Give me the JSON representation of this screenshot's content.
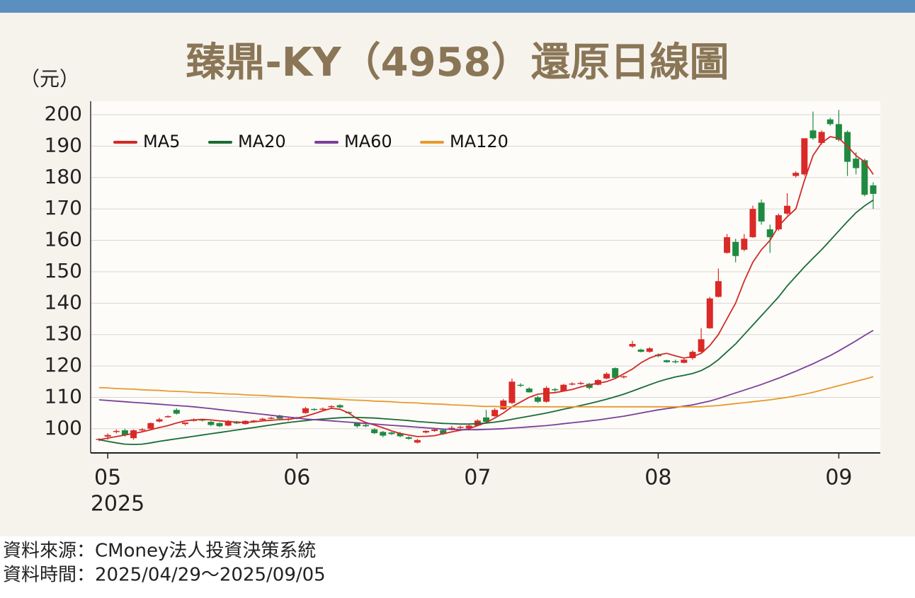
{
  "chart_data": {
    "type": "candlestick",
    "title": "臻鼎-KY（4958）還原日線圖",
    "y_axis_label": "（元）",
    "year_label": "2025",
    "categories": [
      null,
      "05",
      null,
      null,
      null,
      null,
      null,
      null,
      null,
      null,
      null,
      null,
      null,
      null,
      null,
      null,
      null,
      null,
      null,
      null,
      null,
      null,
      null,
      "06",
      null,
      null,
      null,
      null,
      null,
      null,
      null,
      null,
      null,
      null,
      null,
      null,
      null,
      null,
      null,
      null,
      null,
      null,
      null,
      null,
      "07",
      null,
      null,
      null,
      null,
      null,
      null,
      null,
      null,
      null,
      null,
      null,
      null,
      null,
      null,
      null,
      null,
      null,
      null,
      null,
      null,
      "08",
      null,
      null,
      null,
      null,
      null,
      null,
      null,
      null,
      null,
      null,
      null,
      null,
      null,
      null,
      null,
      null,
      null,
      null,
      null,
      null,
      "09",
      null,
      null,
      null,
      null
    ],
    "candle_fields": [
      "open",
      "high",
      "low",
      "close"
    ],
    "up_color": "#d92a27",
    "down_color": "#1f8a3f",
    "candles": [
      [
        96.5,
        97,
        96,
        96.8
      ],
      [
        97.5,
        98.5,
        96.5,
        98
      ],
      [
        99,
        99.8,
        98.5,
        99.3
      ],
      [
        99.5,
        100,
        97.5,
        98
      ],
      [
        97,
        99.8,
        96.5,
        99.5
      ],
      [
        99.5,
        100.2,
        99,
        99.8
      ],
      [
        100,
        102,
        99.5,
        101.8
      ],
      [
        102.3,
        103.5,
        102,
        103
      ],
      [
        103.8,
        104.3,
        103.5,
        104
      ],
      [
        106,
        106.5,
        104.5,
        104.8
      ],
      [
        101.5,
        102,
        101,
        102
      ],
      [
        102.5,
        103.3,
        102.3,
        103
      ],
      [
        103,
        103.2,
        102.3,
        102.6
      ],
      [
        102.2,
        102.5,
        100.8,
        101.2
      ],
      [
        101.8,
        102,
        100.5,
        100.8
      ],
      [
        101,
        102.8,
        100.8,
        102.5
      ],
      [
        102.3,
        102.5,
        101.5,
        101.7
      ],
      [
        101.5,
        102.7,
        101.3,
        102.5
      ],
      [
        102.3,
        102.8,
        102,
        102.6
      ],
      [
        102.8,
        103.5,
        102.5,
        103.2
      ],
      [
        103.3,
        103.8,
        103,
        103.5
      ],
      [
        104.2,
        104.5,
        102.8,
        103.2
      ],
      [
        103,
        103.5,
        102.5,
        103.2
      ],
      [
        103.3,
        103.8,
        103,
        103.6
      ],
      [
        105,
        107,
        104.8,
        106.5
      ],
      [
        106.3,
        106.5,
        105.8,
        106.2
      ],
      [
        106.2,
        106.8,
        105.8,
        106.4
      ],
      [
        107,
        107.5,
        106.5,
        107.2
      ],
      [
        107.5,
        107.8,
        106.5,
        106.8
      ],
      [
        105.3,
        105.5,
        104.8,
        105
      ],
      [
        101.8,
        102,
        100.3,
        100.8
      ],
      [
        101.2,
        101.5,
        100.5,
        100.8
      ],
      [
        99.8,
        100.2,
        98.3,
        98.6
      ],
      [
        99,
        99.3,
        97.3,
        97.8
      ],
      [
        98.8,
        99,
        98,
        98.3
      ],
      [
        98.6,
        99,
        97.3,
        97.6
      ],
      [
        97.3,
        97.6,
        96.5,
        96.8
      ],
      [
        95.6,
        96.8,
        95.3,
        96.4
      ],
      [
        98.8,
        99.5,
        98.5,
        99.3
      ],
      [
        99.3,
        100.2,
        99,
        99.8
      ],
      [
        99.6,
        99.8,
        98,
        98.3
      ],
      [
        99.8,
        101,
        99.5,
        100.3
      ],
      [
        100.3,
        101,
        100,
        100.6
      ],
      [
        100.2,
        101.5,
        100,
        101
      ],
      [
        101,
        103,
        100.8,
        102.6
      ],
      [
        103.6,
        106,
        102,
        102.2
      ],
      [
        104,
        106.5,
        103.8,
        106
      ],
      [
        106.2,
        109.5,
        106,
        109
      ],
      [
        108.2,
        116,
        107.8,
        115
      ],
      [
        114,
        114.5,
        113.3,
        113.8
      ],
      [
        112.8,
        113.2,
        111.5,
        111.6
      ],
      [
        110,
        110.5,
        108.2,
        108.6
      ],
      [
        108.6,
        113.6,
        108.3,
        113
      ],
      [
        112.6,
        113,
        111.8,
        112.3
      ],
      [
        112,
        114.3,
        111.8,
        114
      ],
      [
        114.2,
        114.8,
        113.8,
        114.4
      ],
      [
        114.5,
        115,
        114,
        114.6
      ],
      [
        114.3,
        114.6,
        112.5,
        113
      ],
      [
        114,
        115.8,
        113.8,
        115.5
      ],
      [
        116,
        118,
        115.8,
        117.5
      ],
      [
        119.3,
        119.5,
        115.8,
        116.2
      ],
      [
        116.5,
        117,
        116,
        116.7
      ],
      [
        126.2,
        128,
        125.8,
        127
      ],
      [
        125.2,
        125.5,
        124.3,
        124.5
      ],
      [
        124.5,
        126,
        124.2,
        125.6
      ],
      [
        123.6,
        124,
        122.8,
        123.1
      ],
      [
        121.8,
        122,
        121,
        121.2
      ],
      [
        121.5,
        122,
        120.8,
        121.3
      ],
      [
        121,
        122.3,
        120.8,
        122
      ],
      [
        122.5,
        125,
        122,
        124.5
      ],
      [
        124.5,
        132,
        124.3,
        128.5
      ],
      [
        132,
        142,
        131.8,
        141.5
      ],
      [
        142,
        151,
        141.8,
        147
      ],
      [
        156,
        162,
        155.8,
        161
      ],
      [
        159.5,
        160.5,
        153,
        155
      ],
      [
        157,
        162,
        156.5,
        160.5
      ],
      [
        161,
        171,
        160.8,
        170
      ],
      [
        172,
        173,
        165,
        166
      ],
      [
        163.5,
        165,
        156,
        161
      ],
      [
        163.5,
        168.5,
        163,
        168
      ],
      [
        168.5,
        175,
        168,
        171
      ],
      [
        180.5,
        182,
        180,
        181.5
      ],
      [
        181,
        192.5,
        180.5,
        192.5
      ],
      [
        195,
        201,
        192,
        192.5
      ],
      [
        191,
        195,
        190.5,
        194.5
      ],
      [
        198.5,
        199,
        196.5,
        197
      ],
      [
        197,
        201.5,
        191.5,
        192
      ],
      [
        194.5,
        195,
        180.5,
        185
      ],
      [
        186,
        188,
        181,
        183
      ],
      [
        185.5,
        186,
        174,
        174.5
      ],
      [
        177.5,
        178.5,
        170,
        174.8
      ]
    ],
    "series": [
      {
        "name": "MA5",
        "color": "#d12a26",
        "values": [
          96.5,
          97,
          97.5,
          98,
          98.5,
          99,
          99.7,
          100.4,
          101,
          101.8,
          102.5,
          102.8,
          103,
          102.8,
          102.5,
          102.3,
          102.1,
          102,
          102.2,
          102.5,
          102.7,
          102.9,
          103,
          103.4,
          104,
          104.8,
          105.7,
          106.5,
          106.2,
          105,
          103.2,
          102,
          101.2,
          100.3,
          99.3,
          98.5,
          98,
          97.5,
          97.6,
          97.8,
          98.4,
          99,
          99.5,
          100,
          101,
          102,
          103.4,
          105,
          107,
          108.5,
          110,
          111,
          111.3,
          111.5,
          112,
          112.5,
          113.3,
          114,
          114.5,
          115,
          116,
          117.5,
          119,
          121,
          122.5,
          123.5,
          124,
          123.2,
          122.5,
          123,
          124,
          126.5,
          130,
          135,
          140,
          147,
          153,
          157,
          160,
          164.5,
          167.5,
          170,
          179,
          187,
          191,
          193,
          192.5,
          190,
          187,
          185,
          181
        ]
      },
      {
        "name": "MA20",
        "color": "#1a6b35",
        "values": [
          96.5,
          96,
          95.5,
          95.1,
          95,
          95.1,
          95.5,
          96,
          96.4,
          96.8,
          97.2,
          97.6,
          98,
          98.4,
          98.8,
          99.2,
          99.6,
          100,
          100.4,
          100.8,
          101.2,
          101.6,
          102,
          102.3,
          102.6,
          102.9,
          103.1,
          103.3,
          103.5,
          103.6,
          103.6,
          103.5,
          103.4,
          103.2,
          103,
          102.8,
          102.6,
          102.3,
          102.1,
          101.9,
          101.7,
          101.6,
          101.5,
          101.5,
          101.6,
          101.8,
          102.1,
          102.5,
          103,
          103.5,
          104,
          104.5,
          105,
          105.6,
          106.2,
          106.8,
          107.4,
          108,
          108.7,
          109.4,
          110.2,
          111,
          112,
          113,
          114,
          115,
          115.8,
          116.5,
          117,
          117.6,
          118.5,
          120,
          122,
          124.5,
          127,
          130,
          133,
          136,
          139,
          142,
          145.5,
          148.5,
          151.5,
          154.3,
          157,
          160,
          163,
          166,
          168.8,
          171,
          172.8
        ]
      },
      {
        "name": "MA60",
        "color": "#7b3f98",
        "values": [
          109.2,
          109,
          108.8,
          108.6,
          108.4,
          108.2,
          108,
          107.8,
          107.6,
          107.4,
          107.2,
          107,
          106.7,
          106.4,
          106.1,
          105.8,
          105.5,
          105.2,
          104.9,
          104.6,
          104.3,
          104,
          103.7,
          103.4,
          103.1,
          102.9,
          102.7,
          102.5,
          102.3,
          102.1,
          101.9,
          101.7,
          101.5,
          101.3,
          101.1,
          100.9,
          100.7,
          100.5,
          100.3,
          100.1,
          99.9,
          99.8,
          99.7,
          99.7,
          99.7,
          99.8,
          99.9,
          100,
          100.2,
          100.4,
          100.6,
          100.8,
          101,
          101.3,
          101.6,
          101.9,
          102.2,
          102.5,
          102.8,
          103.2,
          103.6,
          104,
          104.5,
          105,
          105.5,
          106,
          106.4,
          106.8,
          107.2,
          107.6,
          108.2,
          108.8,
          109.6,
          110.5,
          111.4,
          112.3,
          113.2,
          114.1,
          115.1,
          116.1,
          117.2,
          118.3,
          119.5,
          120.7,
          122,
          123.3,
          124.8,
          126.4,
          128,
          129.7,
          131.3
        ]
      },
      {
        "name": "MA120",
        "color": "#e89a2d",
        "values": [
          113.1,
          113,
          112.8,
          112.7,
          112.6,
          112.4,
          112.3,
          112.2,
          112,
          111.9,
          111.8,
          111.6,
          111.5,
          111.4,
          111.2,
          111.1,
          111,
          110.8,
          110.7,
          110.6,
          110.4,
          110.3,
          110.2,
          110,
          109.9,
          109.8,
          109.6,
          109.5,
          109.4,
          109.2,
          109.1,
          109,
          108.8,
          108.7,
          108.6,
          108.4,
          108.3,
          108.2,
          108,
          107.9,
          107.8,
          107.6,
          107.5,
          107.4,
          107.2,
          107.1,
          107.1,
          107,
          107,
          107,
          107,
          107,
          107,
          107,
          107,
          107,
          107,
          107,
          107,
          107,
          107,
          107,
          107,
          107,
          107,
          107,
          107,
          107,
          107,
          107,
          107,
          107.2,
          107.4,
          107.7,
          108,
          108.3,
          108.6,
          108.9,
          109.2,
          109.6,
          110,
          110.5,
          111,
          111.6,
          112.3,
          113,
          113.7,
          114.4,
          115.1,
          115.8,
          116.6
        ]
      }
    ],
    "ylim": [
      92.3,
      204.3
    ],
    "yticks": [
      100,
      110,
      120,
      130,
      140,
      150,
      160,
      170,
      180,
      190,
      200
    ],
    "grid": true,
    "legend": "top-left"
  },
  "footer": {
    "source": "資料來源：CMoney法人投資決策系統",
    "date_range": "資料時間：2025/04/29～2025/09/05"
  }
}
